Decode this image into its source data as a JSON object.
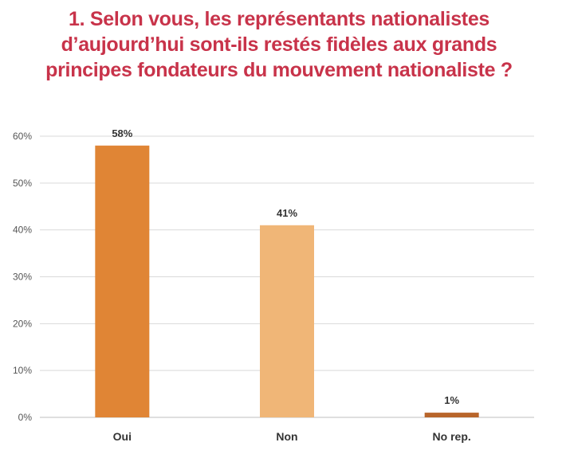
{
  "chart_data": {
    "type": "bar",
    "title_lines": [
      "1. Selon vous, les représentants nationalistes",
      "d’aujourd’hui sont-ils restés fidèles aux grands",
      "principes fondateurs du mouvement nationaliste ?"
    ],
    "categories": [
      "Oui",
      "Non",
      "No rep."
    ],
    "values": [
      58,
      41,
      1
    ],
    "data_labels": [
      "58%",
      "41%",
      "1%"
    ],
    "colors": [
      "#e08535",
      "#f0b677",
      "#b8652a"
    ],
    "title_color": "#c8334a",
    "ylim": [
      0,
      60
    ],
    "yticks": [
      0,
      10,
      20,
      30,
      40,
      50,
      60
    ],
    "ytick_labels": [
      "0%",
      "10%",
      "20%",
      "30%",
      "40%",
      "50%",
      "60%"
    ],
    "grid": true,
    "legend": "none"
  }
}
